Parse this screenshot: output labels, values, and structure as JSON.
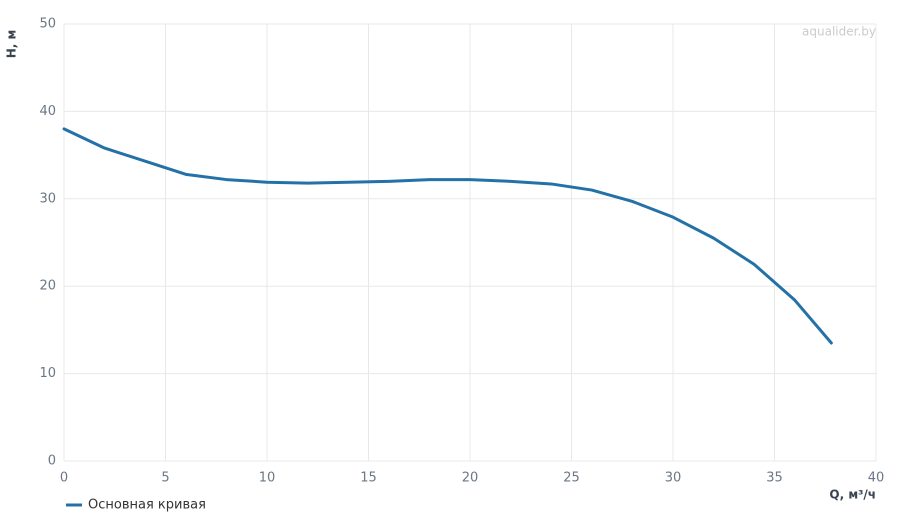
{
  "chart_data": {
    "type": "line",
    "watermark": "aqualider.by",
    "x_label": "Q, м³/ч",
    "y_label": "H, м",
    "x": [
      0,
      2,
      4,
      6,
      8,
      10,
      12,
      14,
      16,
      18,
      20,
      22,
      24,
      26,
      28,
      30,
      32,
      34,
      36,
      37.8
    ],
    "series": [
      {
        "name": "Основная кривая",
        "color": "#2471a8",
        "values": [
          38.0,
          35.8,
          34.3,
          32.8,
          32.2,
          31.9,
          31.8,
          31.9,
          32.0,
          32.2,
          32.2,
          32.0,
          31.7,
          31.0,
          29.7,
          27.9,
          25.5,
          22.5,
          18.4,
          13.5
        ]
      }
    ],
    "xlim": [
      0,
      40
    ],
    "xticks": [
      0,
      5,
      10,
      15,
      20,
      25,
      30,
      35,
      40
    ],
    "ylim": [
      0,
      50
    ],
    "yticks": [
      0,
      10,
      20,
      30,
      40,
      50
    ],
    "grid": true,
    "legend": "bottom-left"
  }
}
